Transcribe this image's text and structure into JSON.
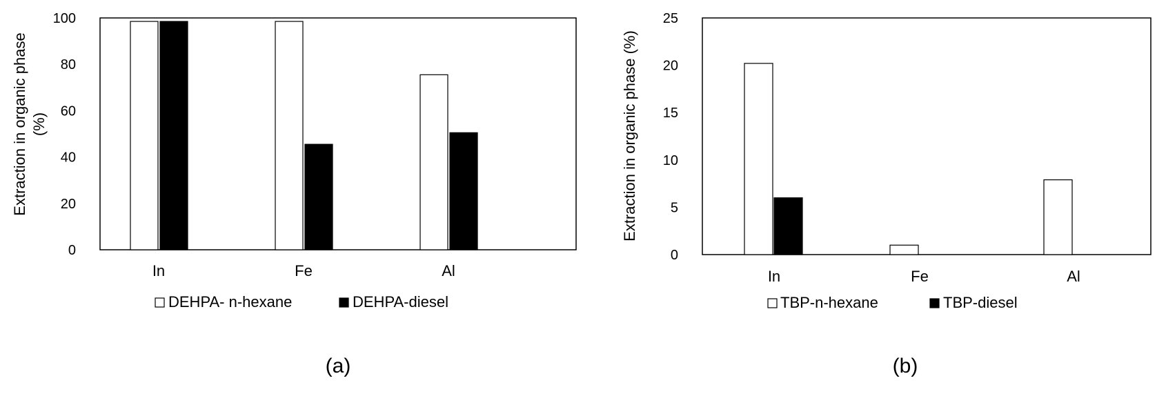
{
  "chart_data": [
    {
      "type": "bar",
      "panel_label": "(a)",
      "categories": [
        "In",
        "Fe",
        "Al"
      ],
      "series": [
        {
          "name": "DEHPA- n-hexane",
          "values": [
            98.5,
            98.5,
            75.5
          ],
          "fill": "#ffffff"
        },
        {
          "name": "DEHPA-diesel",
          "values": [
            98.5,
            45.5,
            50.5
          ],
          "fill": "#000000"
        }
      ],
      "ylabel": [
        "Extraction in organic phase",
        "(%)"
      ],
      "ylim": [
        0,
        100
      ],
      "yticks": [
        0,
        20,
        40,
        60,
        80,
        100
      ],
      "grid": false,
      "legend": "bottom"
    },
    {
      "type": "bar",
      "panel_label": "(b)",
      "categories": [
        "In",
        "Fe",
        "Al"
      ],
      "series": [
        {
          "name": "TBP-n-hexane",
          "values": [
            20.2,
            1.0,
            7.9
          ],
          "fill": "#ffffff"
        },
        {
          "name": "TBP-diesel",
          "values": [
            6.0,
            0,
            0
          ],
          "fill": "#000000"
        }
      ],
      "ylabel": [
        "Extraction in organic phase (%)"
      ],
      "ylim": [
        0,
        25
      ],
      "yticks": [
        0,
        5,
        10,
        15,
        20,
        25
      ],
      "grid": false,
      "legend": "bottom"
    }
  ]
}
